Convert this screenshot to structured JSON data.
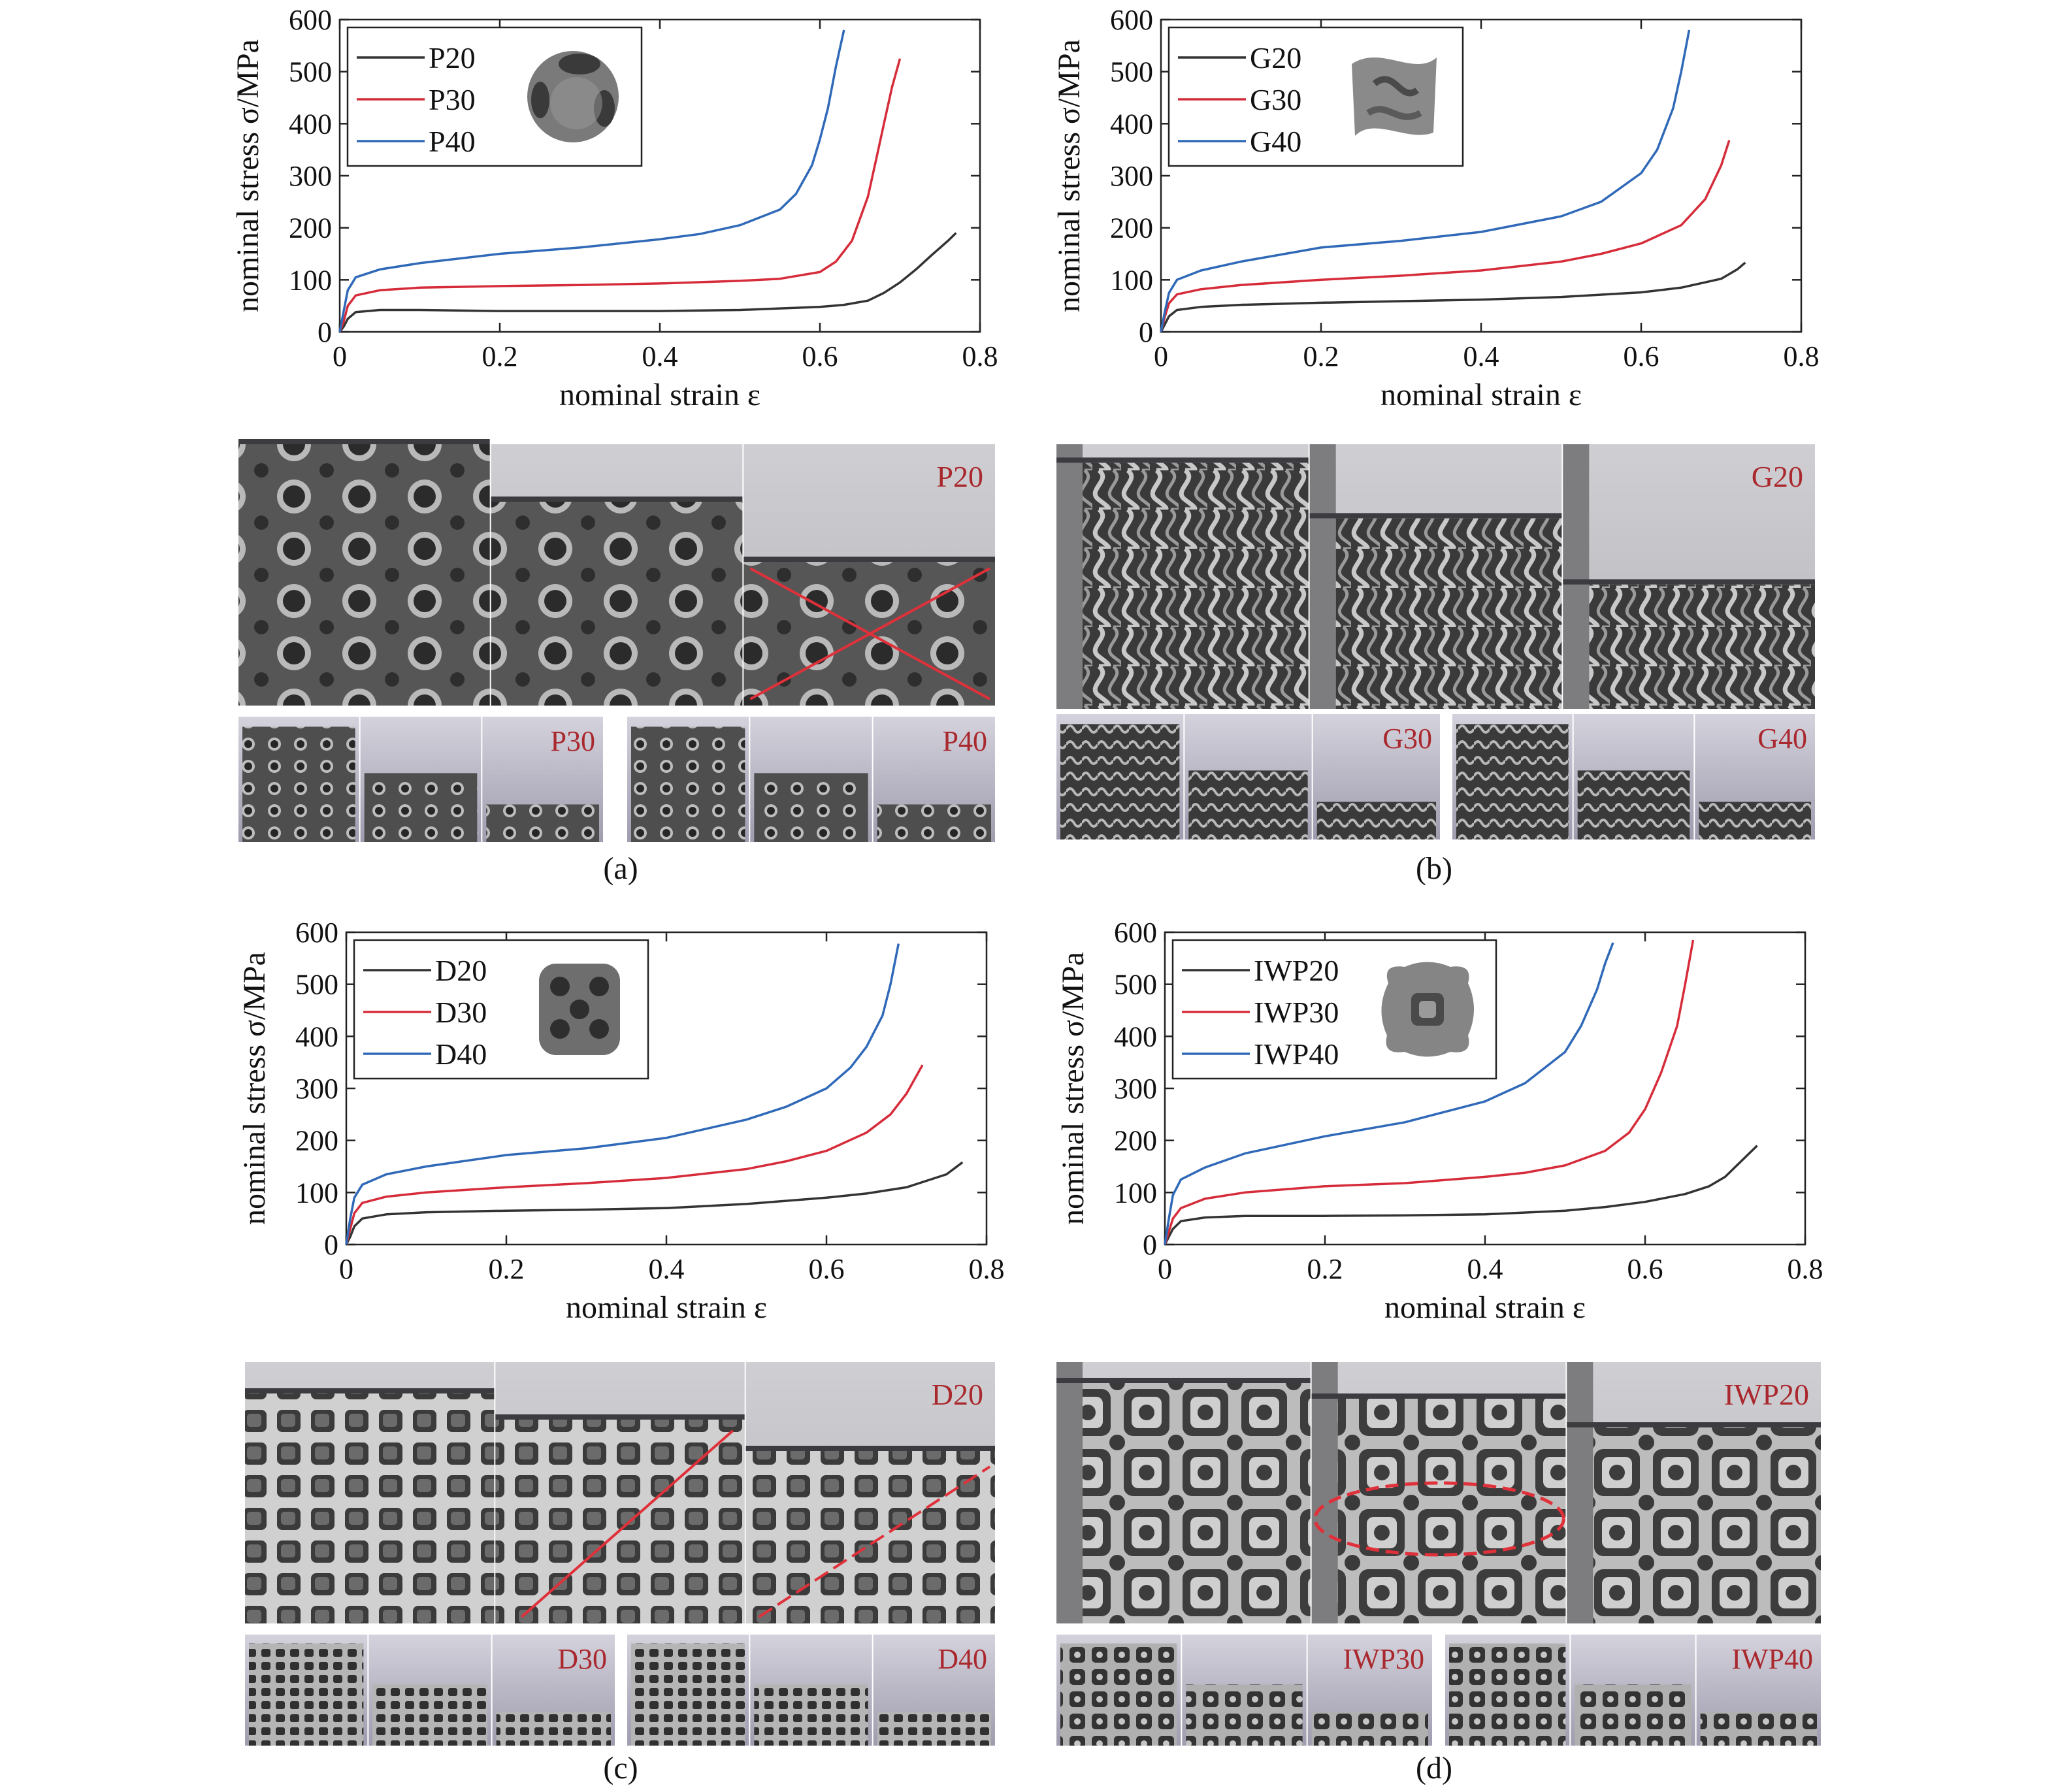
{
  "chart_data": [
    {
      "type": "line",
      "xlabel": "nominal strain ε",
      "ylabel": "nominal stress σ/MPa",
      "xlim": [
        0,
        0.8
      ],
      "ylim": [
        0,
        600
      ],
      "xticks": [
        "0",
        "0.2",
        "0.4",
        "0.6",
        "0.8"
      ],
      "yticks": [
        "0",
        "100",
        "200",
        "300",
        "400",
        "500",
        "600"
      ],
      "legend_position": "top-left",
      "series": [
        {
          "name": "P20",
          "color": "#333333",
          "x": [
            0,
            0.005,
            0.01,
            0.02,
            0.05,
            0.1,
            0.2,
            0.3,
            0.4,
            0.5,
            0.55,
            0.6,
            0.63,
            0.66,
            0.68,
            0.7,
            0.72,
            0.74,
            0.76,
            0.77
          ],
          "y": [
            0,
            10,
            25,
            38,
            42,
            42,
            40,
            40,
            40,
            42,
            45,
            48,
            52,
            60,
            75,
            95,
            120,
            148,
            175,
            190
          ]
        },
        {
          "name": "P30",
          "color": "#d62c3a",
          "x": [
            0,
            0.005,
            0.01,
            0.02,
            0.05,
            0.1,
            0.2,
            0.3,
            0.4,
            0.5,
            0.55,
            0.6,
            0.62,
            0.64,
            0.66,
            0.67,
            0.68,
            0.69,
            0.7
          ],
          "y": [
            0,
            20,
            50,
            70,
            80,
            85,
            88,
            90,
            93,
            98,
            102,
            115,
            135,
            175,
            260,
            330,
            400,
            470,
            525
          ]
        },
        {
          "name": "P40",
          "color": "#2f69b8",
          "x": [
            0,
            0.005,
            0.01,
            0.02,
            0.05,
            0.1,
            0.2,
            0.3,
            0.4,
            0.45,
            0.5,
            0.55,
            0.57,
            0.59,
            0.6,
            0.61,
            0.62,
            0.63
          ],
          "y": [
            0,
            40,
            80,
            105,
            120,
            132,
            150,
            162,
            178,
            188,
            205,
            235,
            265,
            320,
            370,
            430,
            510,
            580
          ]
        }
      ]
    },
    {
      "type": "line",
      "xlabel": "nominal strain ε",
      "ylabel": "nominal stress σ/MPa",
      "xlim": [
        0,
        0.8
      ],
      "ylim": [
        0,
        600
      ],
      "xticks": [
        "0",
        "0.2",
        "0.4",
        "0.6",
        "0.8"
      ],
      "yticks": [
        "0",
        "100",
        "200",
        "300",
        "400",
        "500",
        "600"
      ],
      "legend_position": "top-left",
      "series": [
        {
          "name": "G20",
          "color": "#333333",
          "x": [
            0,
            0.005,
            0.01,
            0.02,
            0.05,
            0.1,
            0.2,
            0.3,
            0.4,
            0.5,
            0.6,
            0.65,
            0.7,
            0.72,
            0.73
          ],
          "y": [
            0,
            15,
            30,
            42,
            48,
            52,
            56,
            59,
            62,
            67,
            76,
            85,
            102,
            120,
            133
          ]
        },
        {
          "name": "G30",
          "color": "#d62c3a",
          "x": [
            0,
            0.005,
            0.01,
            0.02,
            0.05,
            0.1,
            0.2,
            0.3,
            0.4,
            0.5,
            0.55,
            0.6,
            0.65,
            0.68,
            0.7,
            0.71
          ],
          "y": [
            0,
            30,
            55,
            72,
            82,
            90,
            100,
            108,
            118,
            135,
            150,
            170,
            205,
            255,
            320,
            368
          ]
        },
        {
          "name": "G40",
          "color": "#2f69b8",
          "x": [
            0,
            0.005,
            0.01,
            0.02,
            0.05,
            0.1,
            0.2,
            0.3,
            0.4,
            0.5,
            0.55,
            0.6,
            0.62,
            0.64,
            0.65,
            0.66
          ],
          "y": [
            0,
            40,
            75,
            100,
            118,
            135,
            162,
            175,
            192,
            222,
            250,
            305,
            350,
            430,
            500,
            580
          ]
        }
      ]
    },
    {
      "type": "line",
      "xlabel": "nominal strain ε",
      "ylabel": "nominal stress σ/MPa",
      "xlim": [
        0,
        0.8
      ],
      "ylim": [
        0,
        600
      ],
      "xticks": [
        "0",
        "0.2",
        "0.4",
        "0.6",
        "0.8"
      ],
      "yticks": [
        "0",
        "100",
        "200",
        "300",
        "400",
        "500",
        "600"
      ],
      "legend_position": "top-left",
      "series": [
        {
          "name": "D20",
          "color": "#333333",
          "x": [
            0,
            0.005,
            0.01,
            0.02,
            0.05,
            0.1,
            0.2,
            0.3,
            0.4,
            0.5,
            0.6,
            0.65,
            0.7,
            0.75,
            0.77
          ],
          "y": [
            0,
            15,
            35,
            50,
            58,
            62,
            65,
            67,
            70,
            78,
            90,
            98,
            110,
            135,
            158
          ]
        },
        {
          "name": "D30",
          "color": "#d62c3a",
          "x": [
            0,
            0.005,
            0.01,
            0.02,
            0.05,
            0.1,
            0.2,
            0.3,
            0.4,
            0.5,
            0.55,
            0.6,
            0.65,
            0.68,
            0.7,
            0.72
          ],
          "y": [
            0,
            30,
            60,
            80,
            92,
            100,
            110,
            118,
            128,
            145,
            160,
            180,
            215,
            250,
            290,
            345
          ]
        },
        {
          "name": "D40",
          "color": "#2f69b8",
          "x": [
            0,
            0.005,
            0.01,
            0.02,
            0.05,
            0.1,
            0.2,
            0.3,
            0.4,
            0.5,
            0.55,
            0.6,
            0.63,
            0.65,
            0.67,
            0.68,
            0.69
          ],
          "y": [
            0,
            50,
            90,
            115,
            135,
            150,
            172,
            185,
            205,
            240,
            265,
            300,
            340,
            380,
            440,
            500,
            578
          ]
        }
      ]
    },
    {
      "type": "line",
      "xlabel": "nominal strain ε",
      "ylabel": "nominal stress σ/MPa",
      "xlim": [
        0,
        0.8
      ],
      "ylim": [
        0,
        600
      ],
      "xticks": [
        "0",
        "0.2",
        "0.4",
        "0.6",
        "0.8"
      ],
      "yticks": [
        "0",
        "100",
        "200",
        "300",
        "400",
        "500",
        "600"
      ],
      "legend_position": "top-left",
      "series": [
        {
          "name": "IWP20",
          "color": "#333333",
          "x": [
            0,
            0.005,
            0.01,
            0.02,
            0.05,
            0.1,
            0.2,
            0.3,
            0.4,
            0.5,
            0.55,
            0.6,
            0.65,
            0.68,
            0.7,
            0.72,
            0.74
          ],
          "y": [
            0,
            15,
            30,
            45,
            52,
            55,
            55,
            56,
            58,
            65,
            72,
            82,
            97,
            112,
            130,
            160,
            190
          ]
        },
        {
          "name": "IWP30",
          "color": "#d62c3a",
          "x": [
            0,
            0.005,
            0.01,
            0.02,
            0.05,
            0.1,
            0.2,
            0.3,
            0.4,
            0.45,
            0.5,
            0.55,
            0.58,
            0.6,
            0.62,
            0.64,
            0.65,
            0.66
          ],
          "y": [
            0,
            25,
            50,
            70,
            88,
            100,
            112,
            118,
            130,
            138,
            152,
            180,
            215,
            260,
            330,
            420,
            500,
            585
          ]
        },
        {
          "name": "IWP40",
          "color": "#2f69b8",
          "x": [
            0,
            0.005,
            0.01,
            0.02,
            0.05,
            0.1,
            0.2,
            0.3,
            0.4,
            0.45,
            0.5,
            0.52,
            0.54,
            0.55,
            0.56
          ],
          "y": [
            0,
            50,
            95,
            125,
            148,
            175,
            208,
            235,
            275,
            310,
            370,
            420,
            490,
            540,
            580
          ]
        }
      ]
    }
  ],
  "panels": [
    {
      "caption": "(a)",
      "photo_main_label": "P20",
      "photo_sub_labels": [
        "P30",
        "P40"
      ],
      "texture": "holes",
      "marker": "cross",
      "legend_icon": "primitive-unit-cell-icon"
    },
    {
      "caption": "(b)",
      "photo_main_label": "G20",
      "photo_sub_labels": [
        "G30",
        "G40"
      ],
      "texture": "waves",
      "marker": "none",
      "legend_icon": "gyroid-unit-cell-icon"
    },
    {
      "caption": "(c)",
      "photo_main_label": "D20",
      "photo_sub_labels": [
        "D30",
        "D40"
      ],
      "texture": "grid",
      "marker": "diagonal",
      "legend_icon": "diamond-unit-cell-icon"
    },
    {
      "caption": "(d)",
      "photo_main_label": "IWP20",
      "photo_sub_labels": [
        "IWP30",
        "IWP40"
      ],
      "texture": "iwp",
      "marker": "ellipse",
      "legend_icon": "iwp-unit-cell-icon"
    }
  ],
  "colors": {
    "annotation_red": "#a9282e",
    "marker_red": "#e0303a"
  }
}
